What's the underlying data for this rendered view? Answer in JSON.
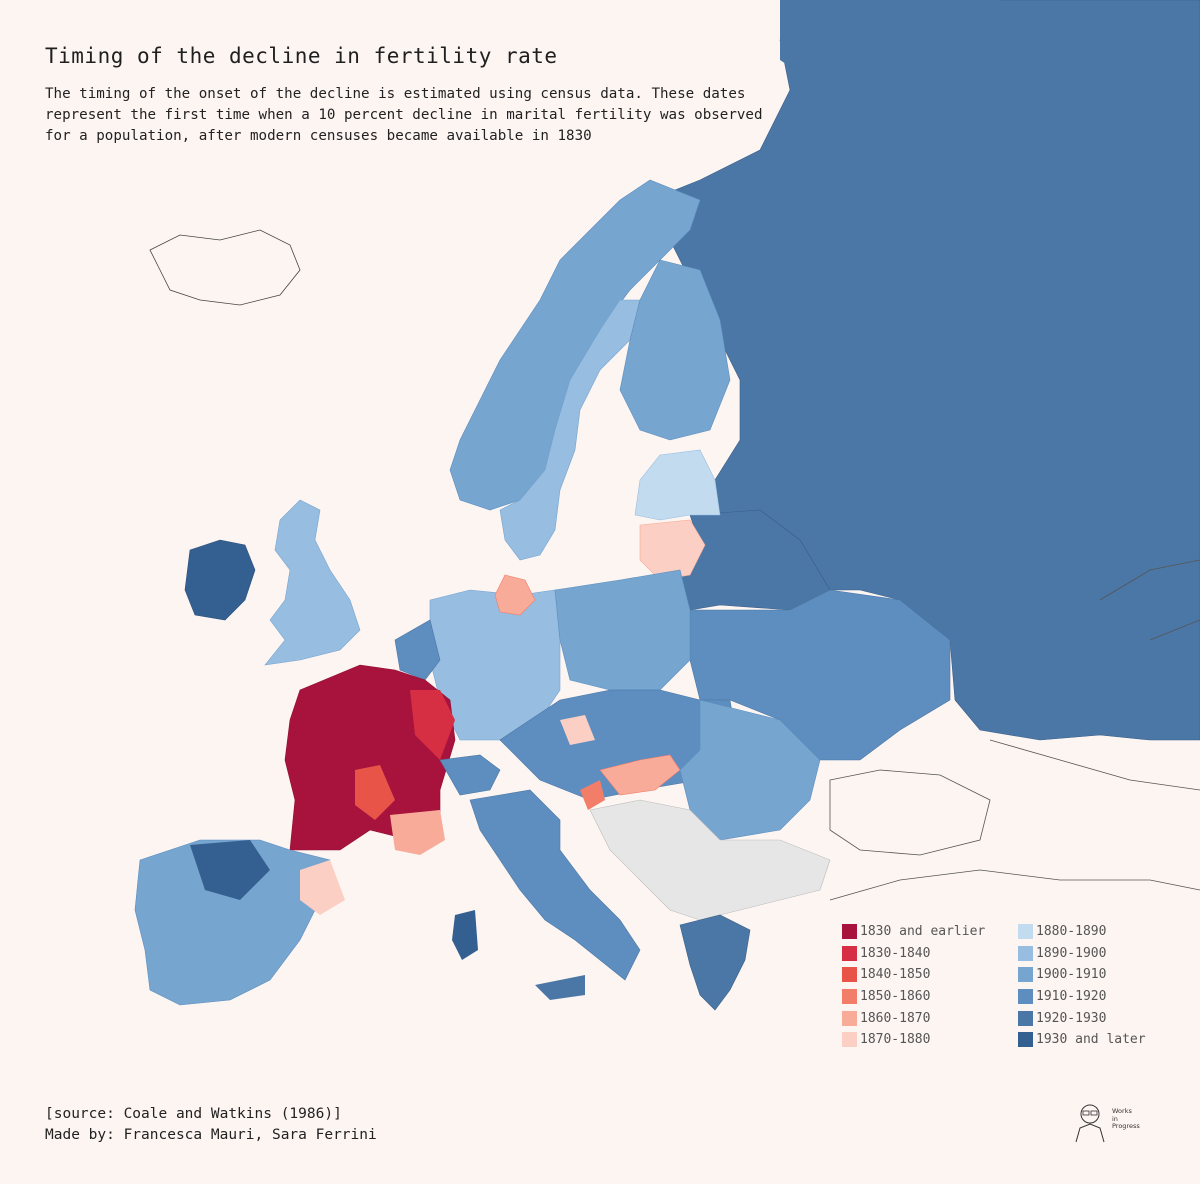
{
  "header": {
    "title": "Timing of the decline in fertility rate",
    "subtitle": "The timing of the onset of the decline is estimated using census data. These dates represent the first time when a 10 percent decline in marital fertility was observed for a population, after modern censuses became available in 1830"
  },
  "legend": {
    "items": [
      {
        "label": "1830 and earlier",
        "color": "#a8133d"
      },
      {
        "label": "1830-1840",
        "color": "#d62e42"
      },
      {
        "label": "1840-1850",
        "color": "#e85548"
      },
      {
        "label": "1850-1860",
        "color": "#f27d68"
      },
      {
        "label": "1860-1870",
        "color": "#f8ab98"
      },
      {
        "label": "1870-1880",
        "color": "#fbcfc3"
      },
      {
        "label": "1880-1890",
        "color": "#c3dbee"
      },
      {
        "label": "1890-1900",
        "color": "#97bde0"
      },
      {
        "label": "1900-1910",
        "color": "#76a5d0"
      },
      {
        "label": "1910-1920",
        "color": "#5d8ebf"
      },
      {
        "label": "1920-1930",
        "color": "#4b77a6"
      },
      {
        "label": "1930 and later",
        "color": "#345f91"
      }
    ],
    "no_data_color": "#e6e6e6"
  },
  "footer": {
    "source": "[source: Coale and Watkins (1986)]",
    "credits": "Made by: Francesca Mauri, Sara Ferrini"
  },
  "logo": {
    "line1": "Works",
    "line2": "in",
    "line3": "Progress",
    "icon": "portrait-sketch-icon"
  }
}
